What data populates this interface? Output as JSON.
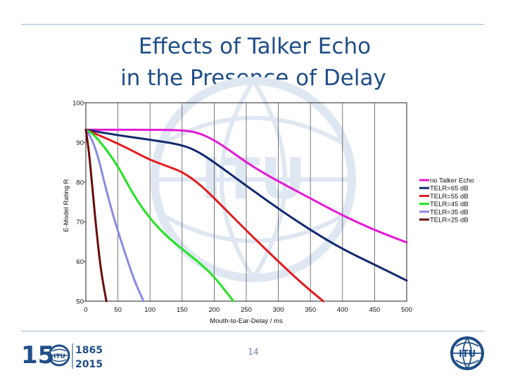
{
  "slide": {
    "title_line1": "Effects of Talker Echo",
    "title_line2": "in the Presence of Delay",
    "page_number": "14",
    "footer_logo_years": [
      "1865",
      "2015"
    ],
    "footer_logo_number": "15",
    "itu_text": "ITU"
  },
  "colors": {
    "title": "#1f4e87",
    "rules": "#9fb7d3",
    "watermark": "#dfe7f2"
  },
  "chart_data": {
    "type": "line",
    "title": "",
    "xlabel": "Mouth-to-Ear-Delay / ms",
    "ylabel": "E-Model Rating R",
    "xlim": [
      0,
      500
    ],
    "ylim": [
      50,
      100
    ],
    "xticks": [
      0,
      50,
      100,
      150,
      200,
      250,
      300,
      350,
      400,
      450,
      500
    ],
    "yticks": [
      50,
      60,
      70,
      80,
      90,
      100
    ],
    "grid": "vertical",
    "legend_position": "right",
    "series": [
      {
        "name": "no Talker Echo",
        "color": "#e41ad6",
        "x": [
          0,
          50,
          100,
          150,
          175,
          200,
          225,
          250,
          275,
          300,
          350,
          400,
          450,
          500
        ],
        "y": [
          93.2,
          93.2,
          93.2,
          93.1,
          92.5,
          90.6,
          87.9,
          85.0,
          82.5,
          80.2,
          75.9,
          71.6,
          67.9,
          64.8
        ]
      },
      {
        "name": "TELR=65 dB",
        "color": "#102a6f",
        "x": [
          0,
          50,
          100,
          150,
          175,
          200,
          250,
          300,
          350,
          400,
          450,
          500
        ],
        "y": [
          93.2,
          91.8,
          90.7,
          89.4,
          87.7,
          85.0,
          79.1,
          73.3,
          67.9,
          63.1,
          59.2,
          55.2
        ]
      },
      {
        "name": "TELR=55 dB",
        "color": "#e31a1c",
        "x": [
          0,
          25,
          50,
          75,
          100,
          125,
          150,
          175,
          200,
          250,
          300,
          340,
          370
        ],
        "y": [
          93.2,
          91.5,
          89.7,
          87.7,
          85.6,
          84.1,
          82.6,
          79.8,
          76.0,
          67.8,
          60.0,
          54.0,
          50.0
        ]
      },
      {
        "name": "TELR=45 dB",
        "color": "#22e322",
        "x": [
          0,
          10,
          25,
          50,
          75,
          100,
          125,
          150,
          175,
          200,
          230
        ],
        "y": [
          93.2,
          92.3,
          89.7,
          84.1,
          76.5,
          70.8,
          66.5,
          63.1,
          60.0,
          56.2,
          50.0
        ]
      },
      {
        "name": "TELR=35 dB",
        "color": "#8a8ae8",
        "x": [
          0,
          10,
          20,
          30,
          45,
          60,
          75,
          90
        ],
        "y": [
          93.2,
          90.7,
          85.9,
          79.1,
          70.2,
          62.6,
          55.4,
          50.0
        ]
      },
      {
        "name": "TELR=25 dB",
        "color": "#6b0a0a",
        "x": [
          0,
          5,
          10,
          15,
          20,
          25,
          32
        ],
        "y": [
          93.2,
          87.5,
          79.1,
          70.2,
          62.6,
          56.2,
          50.0
        ]
      }
    ]
  }
}
